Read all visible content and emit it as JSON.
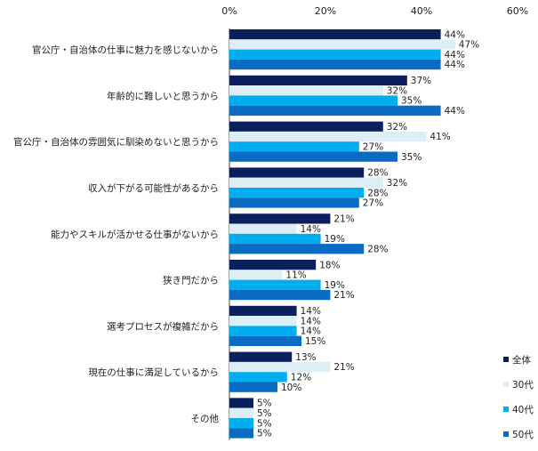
{
  "chart_data": {
    "type": "bar",
    "orientation": "horizontal",
    "categories": [
      "官公庁・自治体の仕事に魅力を感じないから",
      "年齢的に難しいと思うから",
      "官公庁・自治体の雰囲気に馴染めないと思うから",
      "収入が下がる可能性があるから",
      "能力やスキルが活かせる仕事がないから",
      "狭き門だから",
      "選考プロセスが複雑だから",
      "現在の仕事に満足しているから",
      "その他"
    ],
    "series": [
      {
        "name": "全体",
        "color": "#0a1f5c",
        "values": [
          44,
          37,
          32,
          28,
          21,
          18,
          14,
          13,
          5
        ]
      },
      {
        "name": "30代",
        "color": "#ddeef7",
        "values": [
          47,
          32,
          41,
          32,
          14,
          11,
          14,
          21,
          5
        ]
      },
      {
        "name": "40代",
        "color": "#00aeef",
        "values": [
          44,
          35,
          27,
          28,
          19,
          19,
          14,
          12,
          5
        ]
      },
      {
        "name": "50代",
        "color": "#0a6bc2",
        "values": [
          44,
          44,
          35,
          27,
          28,
          21,
          15,
          10,
          5
        ]
      }
    ],
    "xlim": [
      0,
      60
    ],
    "xticks": [
      "0%",
      "20%",
      "40%",
      "60%"
    ],
    "value_suffix": "%",
    "legend_position": "right",
    "grid": false
  }
}
